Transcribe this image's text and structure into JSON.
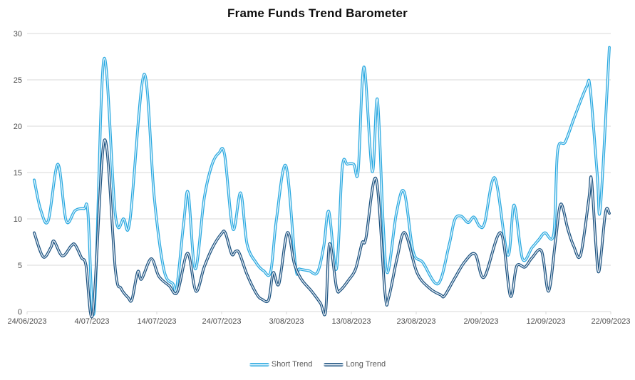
{
  "chart_data": {
    "type": "line",
    "title": "Frame Funds Trend Barometer",
    "xlabel": "",
    "ylabel": "",
    "grid": "horizontal",
    "legend_position": "bottom",
    "y_axis": {
      "min": 0,
      "max": 30,
      "step": 5,
      "tick_labels": [
        "0",
        "5",
        "10",
        "15",
        "20",
        "25",
        "30"
      ]
    },
    "x_axis": {
      "start_date": "24/06/2023",
      "end_date": "22/09/2023",
      "unit": "days",
      "tick_labels": [
        "24/06/2023",
        "4/07/2023",
        "14/07/2023",
        "24/07/2023",
        "3/08/2023",
        "13/08/2023",
        "23/08/2023",
        "2/09/2023",
        "12/09/2023",
        "22/09/2023"
      ],
      "tick_days": [
        0,
        10,
        20,
        30,
        40,
        50,
        60,
        70,
        80,
        90
      ]
    },
    "series": [
      {
        "name": "Short Trend",
        "color": "#2BA9E0",
        "core_color": "#DFF3FC",
        "points": [
          [
            0,
            14.2
          ],
          [
            1,
            11
          ],
          [
            2.2,
            9.8
          ],
          [
            3.7,
            15.9
          ],
          [
            5,
            9.8
          ],
          [
            6.4,
            10.9
          ],
          [
            7.8,
            11.1
          ],
          [
            8.4,
            10.7
          ],
          [
            9.4,
            0.1
          ],
          [
            10.9,
            27.2
          ],
          [
            12.7,
            10.4
          ],
          [
            14,
            10
          ],
          [
            15,
            9.9
          ],
          [
            17.2,
            25.6
          ],
          [
            18.8,
            12.2
          ],
          [
            20.3,
            4.5
          ],
          [
            21.7,
            3
          ],
          [
            22.3,
            2.6
          ],
          [
            23.4,
            9.6
          ],
          [
            24.1,
            12.8
          ],
          [
            25.2,
            4.6
          ],
          [
            26.6,
            12.2
          ],
          [
            27.8,
            15.8
          ],
          [
            28.9,
            17.1
          ],
          [
            29.8,
            16.9
          ],
          [
            31.1,
            8.9
          ],
          [
            32.3,
            12.8
          ],
          [
            33.3,
            7.3
          ],
          [
            34.8,
            5.2
          ],
          [
            35.9,
            4.4
          ],
          [
            37,
            4.3
          ],
          [
            37.9,
            9.9
          ],
          [
            39.4,
            15.7
          ],
          [
            40.9,
            4.9
          ],
          [
            41.5,
            4.6
          ],
          [
            43,
            4.4
          ],
          [
            44.3,
            4.2
          ],
          [
            45.3,
            7
          ],
          [
            46.1,
            10.8
          ],
          [
            47.3,
            4.6
          ],
          [
            48.2,
            15.5
          ],
          [
            49,
            15.9
          ],
          [
            50,
            15.9
          ],
          [
            50.7,
            15.2
          ],
          [
            51.6,
            26.4
          ],
          [
            52.9,
            15.1
          ],
          [
            53.7,
            22.9
          ],
          [
            54.6,
            9.6
          ],
          [
            55.3,
            4.2
          ],
          [
            56.7,
            10.7
          ],
          [
            57.9,
            12.9
          ],
          [
            59.3,
            6.5
          ],
          [
            60.8,
            5.3
          ],
          [
            63.2,
            3
          ],
          [
            64.9,
            7.1
          ],
          [
            65.8,
            9.9
          ],
          [
            66.8,
            10.3
          ],
          [
            67.9,
            9.6
          ],
          [
            68.8,
            10.2
          ],
          [
            69.7,
            9.2
          ],
          [
            70.5,
            9.6
          ],
          [
            72.1,
            14.4
          ],
          [
            74.1,
            6.1
          ],
          [
            75.1,
            11.5
          ],
          [
            76.4,
            5.7
          ],
          [
            77.9,
            6.9
          ],
          [
            79,
            7.8
          ],
          [
            79.9,
            8.5
          ],
          [
            81.3,
            8.4
          ],
          [
            81.9,
            17.3
          ],
          [
            83.1,
            18.3
          ],
          [
            84.5,
            20.9
          ],
          [
            86.4,
            24.2
          ],
          [
            87,
            24.1
          ],
          [
            88.1,
            14.8
          ],
          [
            88.6,
            11.2
          ],
          [
            90,
            28.5
          ]
        ]
      },
      {
        "name": "Long Trend",
        "color": "#1D5380",
        "core_color": "#E8EEF5",
        "points": [
          [
            0,
            8.5
          ],
          [
            1.4,
            5.9
          ],
          [
            2.6,
            6.9
          ],
          [
            3.1,
            7.6
          ],
          [
            4.4,
            6
          ],
          [
            5.8,
            7.1
          ],
          [
            6.4,
            7.2
          ],
          [
            7.4,
            5.8
          ],
          [
            8.1,
            5
          ],
          [
            9.2,
            -0.1
          ],
          [
            11,
            18.5
          ],
          [
            12.7,
            4.5
          ],
          [
            13.6,
            2.5
          ],
          [
            14.7,
            1.5
          ],
          [
            15.3,
            1.3
          ],
          [
            16.2,
            4.3
          ],
          [
            16.8,
            3.5
          ],
          [
            18.3,
            5.7
          ],
          [
            19.5,
            3.8
          ],
          [
            21.1,
            2.8
          ],
          [
            22.4,
            2.1
          ],
          [
            24,
            6.3
          ],
          [
            25.3,
            2.2
          ],
          [
            26.6,
            4.8
          ],
          [
            27.9,
            6.9
          ],
          [
            29.3,
            8.4
          ],
          [
            29.9,
            8.5
          ],
          [
            30.9,
            6.2
          ],
          [
            31.5,
            6.5
          ],
          [
            32.1,
            6.3
          ],
          [
            33.3,
            4
          ],
          [
            34.8,
            1.9
          ],
          [
            35.7,
            1.3
          ],
          [
            36.7,
            1.3
          ],
          [
            37.4,
            4.2
          ],
          [
            38.3,
            3
          ],
          [
            39.6,
            8.5
          ],
          [
            40.7,
            5.2
          ],
          [
            41.8,
            3.5
          ],
          [
            43.4,
            2.2
          ],
          [
            44.8,
            0.9
          ],
          [
            45.6,
            0
          ],
          [
            46.2,
            7.3
          ],
          [
            47.3,
            2.6
          ],
          [
            47.9,
            2.3
          ],
          [
            49.2,
            3.4
          ],
          [
            50.3,
            4.6
          ],
          [
            51.3,
            7.4
          ],
          [
            51.9,
            7.9
          ],
          [
            53.5,
            14.3
          ],
          [
            54.9,
            1.9
          ],
          [
            55.5,
            1.6
          ],
          [
            56.8,
            5.8
          ],
          [
            58,
            8.5
          ],
          [
            59.9,
            4.2
          ],
          [
            61.9,
            2.5
          ],
          [
            63.6,
            1.8
          ],
          [
            64.2,
            1.7
          ],
          [
            65.8,
            3.6
          ],
          [
            67.4,
            5.4
          ],
          [
            69,
            6.2
          ],
          [
            70.4,
            3.7
          ],
          [
            73,
            8.5
          ],
          [
            74.5,
            1.7
          ],
          [
            75.5,
            4.9
          ],
          [
            76.8,
            4.8
          ],
          [
            77.9,
            5.8
          ],
          [
            79.4,
            6.5
          ],
          [
            80.5,
            2.2
          ],
          [
            81.6,
            7.8
          ],
          [
            82.4,
            11.6
          ],
          [
            83.5,
            8.9
          ],
          [
            84.4,
            7.1
          ],
          [
            85.5,
            6.1
          ],
          [
            86.8,
            12.2
          ],
          [
            87.2,
            14.3
          ],
          [
            87.9,
            7.1
          ],
          [
            88.4,
            4.4
          ],
          [
            89.4,
            10.7
          ],
          [
            90,
            10.6
          ]
        ]
      }
    ],
    "colors": {
      "gridline": "#D9D9D9",
      "axis_text": "#4D4D4D",
      "title_text": "#0D0D0D",
      "background": "#FFFFFF"
    }
  }
}
